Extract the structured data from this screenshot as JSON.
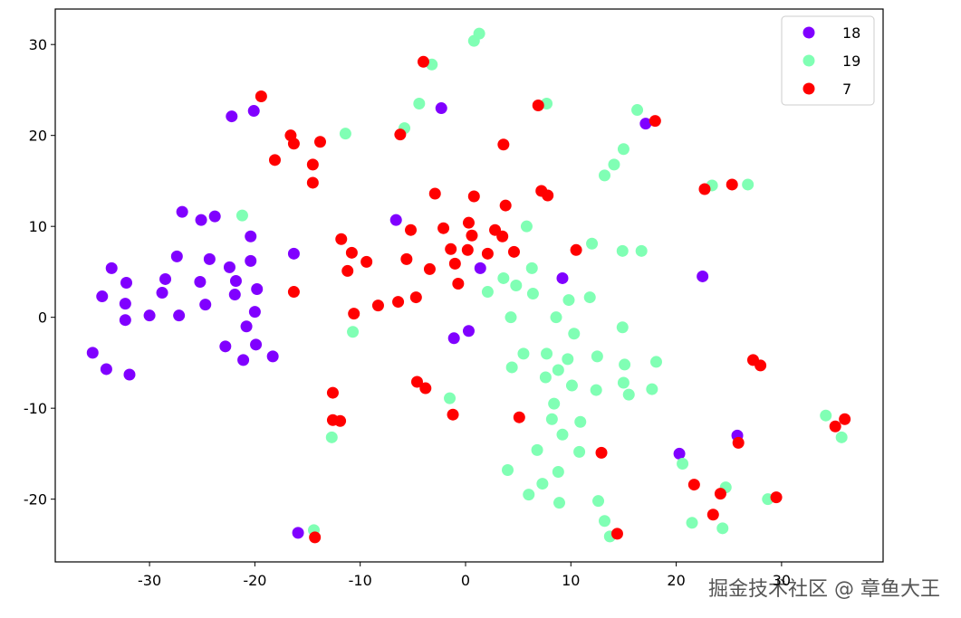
{
  "chart_data": {
    "type": "scatter",
    "title": "□□□□□□",
    "xlim": [
      -38.95,
      39.64
    ],
    "ylim": [
      -26.9,
      33.9
    ],
    "xticks": [
      -30,
      -20,
      -10,
      0,
      10,
      20,
      30
    ],
    "yticks": [
      -20,
      -10,
      0,
      10,
      20,
      30
    ],
    "legend": "upper right",
    "watermark": "掘金技术社区 @ 章鱼大王",
    "series": [
      {
        "name": "18",
        "color": "#8000ff",
        "x": [
          -35.4,
          -34.1,
          -31.9,
          -33.6,
          -34.5,
          -32.2,
          -32.3,
          -32.3,
          -30.0,
          -28.8,
          -28.5,
          -27.4,
          -27.2,
          -26.9,
          -25.1,
          -23.8,
          -24.3,
          -25.2,
          -24.7,
          -22.8,
          -22.4,
          -21.8,
          -21.9,
          -21.1,
          -20.8,
          -20.4,
          -20.4,
          -19.8,
          -20.0,
          -19.9,
          -18.3,
          -22.2,
          -20.1,
          -16.3,
          -15.9,
          -6.6,
          -2.3,
          -1.1,
          0.3,
          1.4,
          9.2,
          17.1,
          22.5,
          20.3,
          25.8
        ],
        "values": [
          -3.9,
          -5.7,
          -6.3,
          5.4,
          2.3,
          3.8,
          1.5,
          -0.3,
          0.2,
          2.7,
          4.2,
          6.7,
          0.2,
          11.6,
          10.7,
          11.1,
          6.4,
          3.9,
          1.4,
          -3.2,
          5.5,
          4.0,
          2.5,
          -4.7,
          -1.0,
          8.9,
          6.2,
          3.1,
          0.6,
          -3.0,
          -4.3,
          22.1,
          22.7,
          7.0,
          -23.7,
          10.7,
          23.0,
          -2.3,
          -1.5,
          5.4,
          4.3,
          21.3,
          4.5,
          -15.0,
          -13.0
        ]
      },
      {
        "name": "19",
        "color": "#80ffb4",
        "x": [
          1.3,
          0.8,
          -3.2,
          -4.4,
          -5.8,
          -11.4,
          -21.2,
          -10.7,
          -12.7,
          -14.4,
          -1.5,
          7.7,
          16.3,
          15.0,
          14.1,
          13.2,
          23.4,
          26.8,
          5.8,
          12.0,
          14.9,
          16.7,
          3.6,
          4.8,
          6.3,
          2.1,
          6.4,
          9.8,
          11.8,
          4.3,
          8.6,
          10.3,
          14.9,
          5.5,
          7.7,
          9.7,
          12.5,
          15.1,
          18.1,
          4.4,
          7.6,
          8.8,
          10.1,
          12.4,
          15.0,
          15.5,
          17.7,
          8.4,
          8.2,
          9.2,
          10.9,
          10.8,
          6.8,
          4.0,
          8.8,
          7.3,
          6.0,
          8.9,
          12.6,
          13.2,
          13.7,
          20.6,
          24.7,
          21.5,
          24.4,
          28.7,
          34.2,
          35.7
        ],
        "values": [
          31.2,
          30.4,
          27.8,
          23.5,
          20.8,
          20.2,
          11.2,
          -1.6,
          -13.2,
          -23.4,
          -8.9,
          23.5,
          22.8,
          18.5,
          16.8,
          15.6,
          14.5,
          14.6,
          10.0,
          8.1,
          7.3,
          7.3,
          4.3,
          3.5,
          5.4,
          2.8,
          2.6,
          1.9,
          2.2,
          0.0,
          0.0,
          -1.8,
          -1.1,
          -4.0,
          -4.0,
          -4.6,
          -4.3,
          -5.2,
          -4.9,
          -5.5,
          -6.6,
          -5.8,
          -7.5,
          -8.0,
          -7.2,
          -8.5,
          -7.9,
          -9.5,
          -11.2,
          -12.9,
          -11.5,
          -14.8,
          -14.6,
          -16.8,
          -17.0,
          -18.3,
          -19.5,
          -20.4,
          -20.2,
          -22.4,
          -24.1,
          -16.1,
          -18.7,
          -22.6,
          -23.2,
          -20.0,
          -10.8,
          -13.2
        ]
      },
      {
        "name": "7",
        "color": "#ff0000",
        "x": [
          -4.0,
          -19.4,
          -16.6,
          -16.3,
          -13.8,
          -18.1,
          -14.5,
          -14.5,
          -6.2,
          3.6,
          6.9,
          18.0,
          -2.9,
          0.8,
          3.8,
          7.2,
          7.8,
          22.7,
          25.3,
          -5.2,
          -2.1,
          0.3,
          0.6,
          2.8,
          3.5,
          -11.8,
          -1.4,
          0.2,
          2.1,
          4.6,
          10.5,
          -10.8,
          -5.6,
          -9.4,
          -1.0,
          -3.4,
          -11.2,
          -0.7,
          -16.3,
          -4.7,
          -6.4,
          -8.3,
          -10.6,
          -4.6,
          -3.8,
          -12.6,
          -12.6,
          -11.9,
          -1.2,
          5.1,
          12.9,
          27.3,
          28.0,
          25.9,
          21.7,
          24.2,
          29.5,
          23.5,
          14.4,
          -14.3,
          35.1,
          36.0
        ],
        "values": [
          28.1,
          24.3,
          20.0,
          19.1,
          19.3,
          17.3,
          16.8,
          14.8,
          20.1,
          19.0,
          23.3,
          21.6,
          13.6,
          13.3,
          12.3,
          13.9,
          13.4,
          14.1,
          14.6,
          9.6,
          9.8,
          10.4,
          9.0,
          9.6,
          8.9,
          8.6,
          7.5,
          7.4,
          7.0,
          7.2,
          7.4,
          7.1,
          6.4,
          6.1,
          5.9,
          5.3,
          5.1,
          3.7,
          2.8,
          2.2,
          1.7,
          1.3,
          0.4,
          -7.1,
          -7.8,
          -8.3,
          -11.3,
          -11.4,
          -10.7,
          -11.0,
          -14.9,
          -4.7,
          -5.3,
          -13.8,
          -18.4,
          -19.4,
          -19.8,
          -21.7,
          -23.8,
          -24.2,
          -12.0,
          -11.2
        ]
      }
    ]
  }
}
